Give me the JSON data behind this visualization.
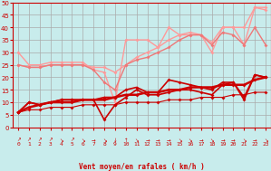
{
  "xlabel": "Vent moyen/en rafales ( km/h )",
  "xlim": [
    -0.5,
    23.5
  ],
  "ylim": [
    0,
    50
  ],
  "yticks": [
    0,
    5,
    10,
    15,
    20,
    25,
    30,
    35,
    40,
    45,
    50
  ],
  "xticks": [
    0,
    1,
    2,
    3,
    4,
    5,
    6,
    7,
    8,
    9,
    10,
    11,
    12,
    13,
    14,
    15,
    16,
    17,
    18,
    19,
    20,
    21,
    22,
    23
  ],
  "bg_color": "#c8ecec",
  "grid_color": "#aaaaaa",
  "series": [
    {
      "note": "light pink upper - starts ~30, dips to ~10 at x=9, rises to 48",
      "x": [
        0,
        1,
        2,
        3,
        4,
        5,
        6,
        7,
        8,
        9,
        10,
        11,
        12,
        13,
        14,
        15,
        16,
        17,
        18,
        19,
        20,
        21,
        22,
        23
      ],
      "y": [
        30,
        25,
        25,
        26,
        26,
        26,
        26,
        23,
        22,
        10,
        35,
        35,
        35,
        32,
        40,
        37,
        37,
        37,
        30,
        40,
        40,
        33,
        48,
        48
      ],
      "color": "#ff9999",
      "lw": 1.0,
      "marker": "D",
      "ms": 2.0
    },
    {
      "note": "light pink lower - starts ~25, goes down gradually to ~10, then rises to 47",
      "x": [
        0,
        1,
        2,
        3,
        4,
        5,
        6,
        7,
        8,
        9,
        10,
        11,
        12,
        13,
        14,
        15,
        16,
        17,
        18,
        19,
        20,
        21,
        22,
        23
      ],
      "y": [
        25,
        24,
        24,
        25,
        25,
        25,
        25,
        24,
        24,
        22,
        25,
        28,
        30,
        32,
        35,
        37,
        38,
        37,
        34,
        40,
        40,
        40,
        48,
        47
      ],
      "color": "#ff9999",
      "lw": 1.0,
      "marker": "D",
      "ms": 2.0
    },
    {
      "note": "medium pink - starts ~25, goes down to ~10 at x=9, then rises to ~33",
      "x": [
        0,
        1,
        2,
        3,
        4,
        5,
        6,
        7,
        8,
        9,
        10,
        11,
        12,
        13,
        14,
        15,
        16,
        17,
        18,
        19,
        20,
        21,
        22,
        23
      ],
      "y": [
        25,
        24,
        24,
        25,
        25,
        25,
        25,
        23,
        18,
        15,
        25,
        27,
        28,
        30,
        32,
        35,
        37,
        37,
        33,
        38,
        37,
        33,
        40,
        33
      ],
      "color": "#ee7777",
      "lw": 1.0,
      "marker": "D",
      "ms": 2.0
    },
    {
      "note": "dark red upper line - starts ~6, goes up gradually to ~21",
      "x": [
        0,
        1,
        2,
        3,
        4,
        5,
        6,
        7,
        8,
        9,
        10,
        11,
        12,
        13,
        14,
        15,
        16,
        17,
        18,
        19,
        20,
        21,
        22,
        23
      ],
      "y": [
        6,
        10,
        9,
        10,
        11,
        11,
        11,
        11,
        12,
        12,
        15,
        16,
        14,
        14,
        19,
        18,
        17,
        16,
        15,
        18,
        18,
        12,
        21,
        20
      ],
      "color": "#cc0000",
      "lw": 1.2,
      "marker": "D",
      "ms": 2.0
    },
    {
      "note": "dark red - starts ~6, dips to ~3 at x=10, rises to 21",
      "x": [
        0,
        1,
        2,
        3,
        4,
        5,
        6,
        7,
        8,
        9,
        10,
        11,
        12,
        13,
        14,
        15,
        16,
        17,
        18,
        19,
        20,
        21,
        22,
        23
      ],
      "y": [
        6,
        10,
        9,
        10,
        11,
        11,
        11,
        11,
        3,
        9,
        12,
        15,
        13,
        13,
        14,
        15,
        15,
        14,
        13,
        17,
        18,
        11,
        21,
        20
      ],
      "color": "#cc0000",
      "lw": 1.2,
      "marker": "D",
      "ms": 2.0
    },
    {
      "note": "dark red trend line - starts ~6, rises steadily to ~20",
      "x": [
        0,
        1,
        2,
        3,
        4,
        5,
        6,
        7,
        8,
        9,
        10,
        11,
        12,
        13,
        14,
        15,
        16,
        17,
        18,
        19,
        20,
        21,
        22,
        23
      ],
      "y": [
        6,
        8,
        9,
        10,
        10,
        10,
        11,
        11,
        11,
        12,
        13,
        13,
        14,
        14,
        15,
        15,
        16,
        16,
        16,
        17,
        17,
        17,
        19,
        20
      ],
      "color": "#cc0000",
      "lw": 1.8,
      "marker": "D",
      "ms": 2.0
    },
    {
      "note": "thin dark red declining line - starts ~6, goes down to ~5",
      "x": [
        0,
        1,
        2,
        3,
        4,
        5,
        6,
        7,
        8,
        9,
        10,
        11,
        12,
        13,
        14,
        15,
        16,
        17,
        18,
        19,
        20,
        21,
        22,
        23
      ],
      "y": [
        6,
        7,
        7,
        8,
        8,
        8,
        9,
        9,
        9,
        9,
        10,
        10,
        10,
        10,
        11,
        11,
        11,
        12,
        12,
        12,
        13,
        13,
        14,
        14
      ],
      "color": "#cc0000",
      "lw": 0.8,
      "marker": "D",
      "ms": 2.0
    }
  ],
  "wind_arrows": [
    "↗",
    "↗",
    "↗",
    "↗",
    "↘",
    "↗",
    "↘",
    "→",
    "↘",
    "↓",
    "↑",
    "↘",
    "→",
    "→",
    "→",
    "↘",
    "↘",
    "→",
    "↘",
    "→",
    "→",
    "↘",
    "→",
    "↘"
  ]
}
